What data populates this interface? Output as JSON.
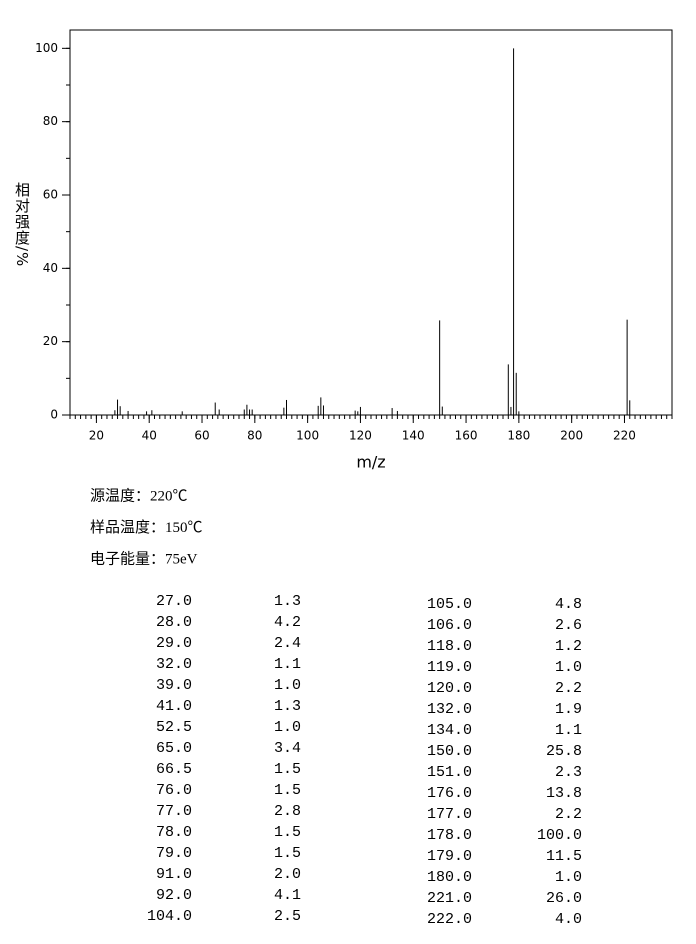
{
  "chart_data": {
    "type": "bar",
    "xlabel": "m/z",
    "ylabel": "相对强度/%",
    "x": [
      27,
      28,
      29,
      32,
      39,
      41,
      52.5,
      65,
      66.5,
      76,
      77,
      78,
      79,
      91,
      92,
      104,
      105,
      106,
      118,
      119,
      120,
      132,
      134,
      150,
      151,
      176,
      177,
      178,
      179,
      180,
      221,
      222
    ],
    "x_labels": [
      "27.0",
      "28.0",
      "29.0",
      "32.0",
      "39.0",
      "41.0",
      "52.5",
      "65.0",
      "66.5",
      "76.0",
      "77.0",
      "78.0",
      "79.0",
      "91.0",
      "92.0",
      "104.0",
      "105.0",
      "106.0",
      "118.0",
      "119.0",
      "120.0",
      "132.0",
      "134.0",
      "150.0",
      "151.0",
      "176.0",
      "177.0",
      "178.0",
      "179.0",
      "180.0",
      "221.0",
      "222.0"
    ],
    "values": [
      1.3,
      4.2,
      2.4,
      1.1,
      1.0,
      1.3,
      1.0,
      3.4,
      1.5,
      1.5,
      2.8,
      1.5,
      1.5,
      2.0,
      4.1,
      2.5,
      4.8,
      2.6,
      1.2,
      1.0,
      2.2,
      1.9,
      1.1,
      25.8,
      2.3,
      13.8,
      2.2,
      100.0,
      11.5,
      1.0,
      26.0,
      4.0
    ],
    "value_labels": [
      "1.3",
      "4.2",
      "2.4",
      "1.1",
      "1.0",
      "1.3",
      "1.0",
      "3.4",
      "1.5",
      "1.5",
      "2.8",
      "1.5",
      "1.5",
      "2.0",
      "4.1",
      "2.5",
      "4.8",
      "2.6",
      "1.2",
      "1.0",
      "2.2",
      "1.9",
      "1.1",
      "25.8",
      "2.3",
      "13.8",
      "2.2",
      "100.0",
      "11.5",
      "1.0",
      "26.0",
      "4.0"
    ],
    "color": "#000000",
    "xlim": [
      10,
      238
    ],
    "xticks": [
      20,
      40,
      60,
      80,
      100,
      120,
      140,
      160,
      180,
      200,
      220
    ],
    "ylim": [
      0,
      105
    ],
    "yticks": [
      0,
      20,
      40,
      60,
      80,
      100
    ]
  },
  "conditions": [
    "源温度：220℃",
    "样品温度：150℃",
    "电子能量：75eV"
  ]
}
